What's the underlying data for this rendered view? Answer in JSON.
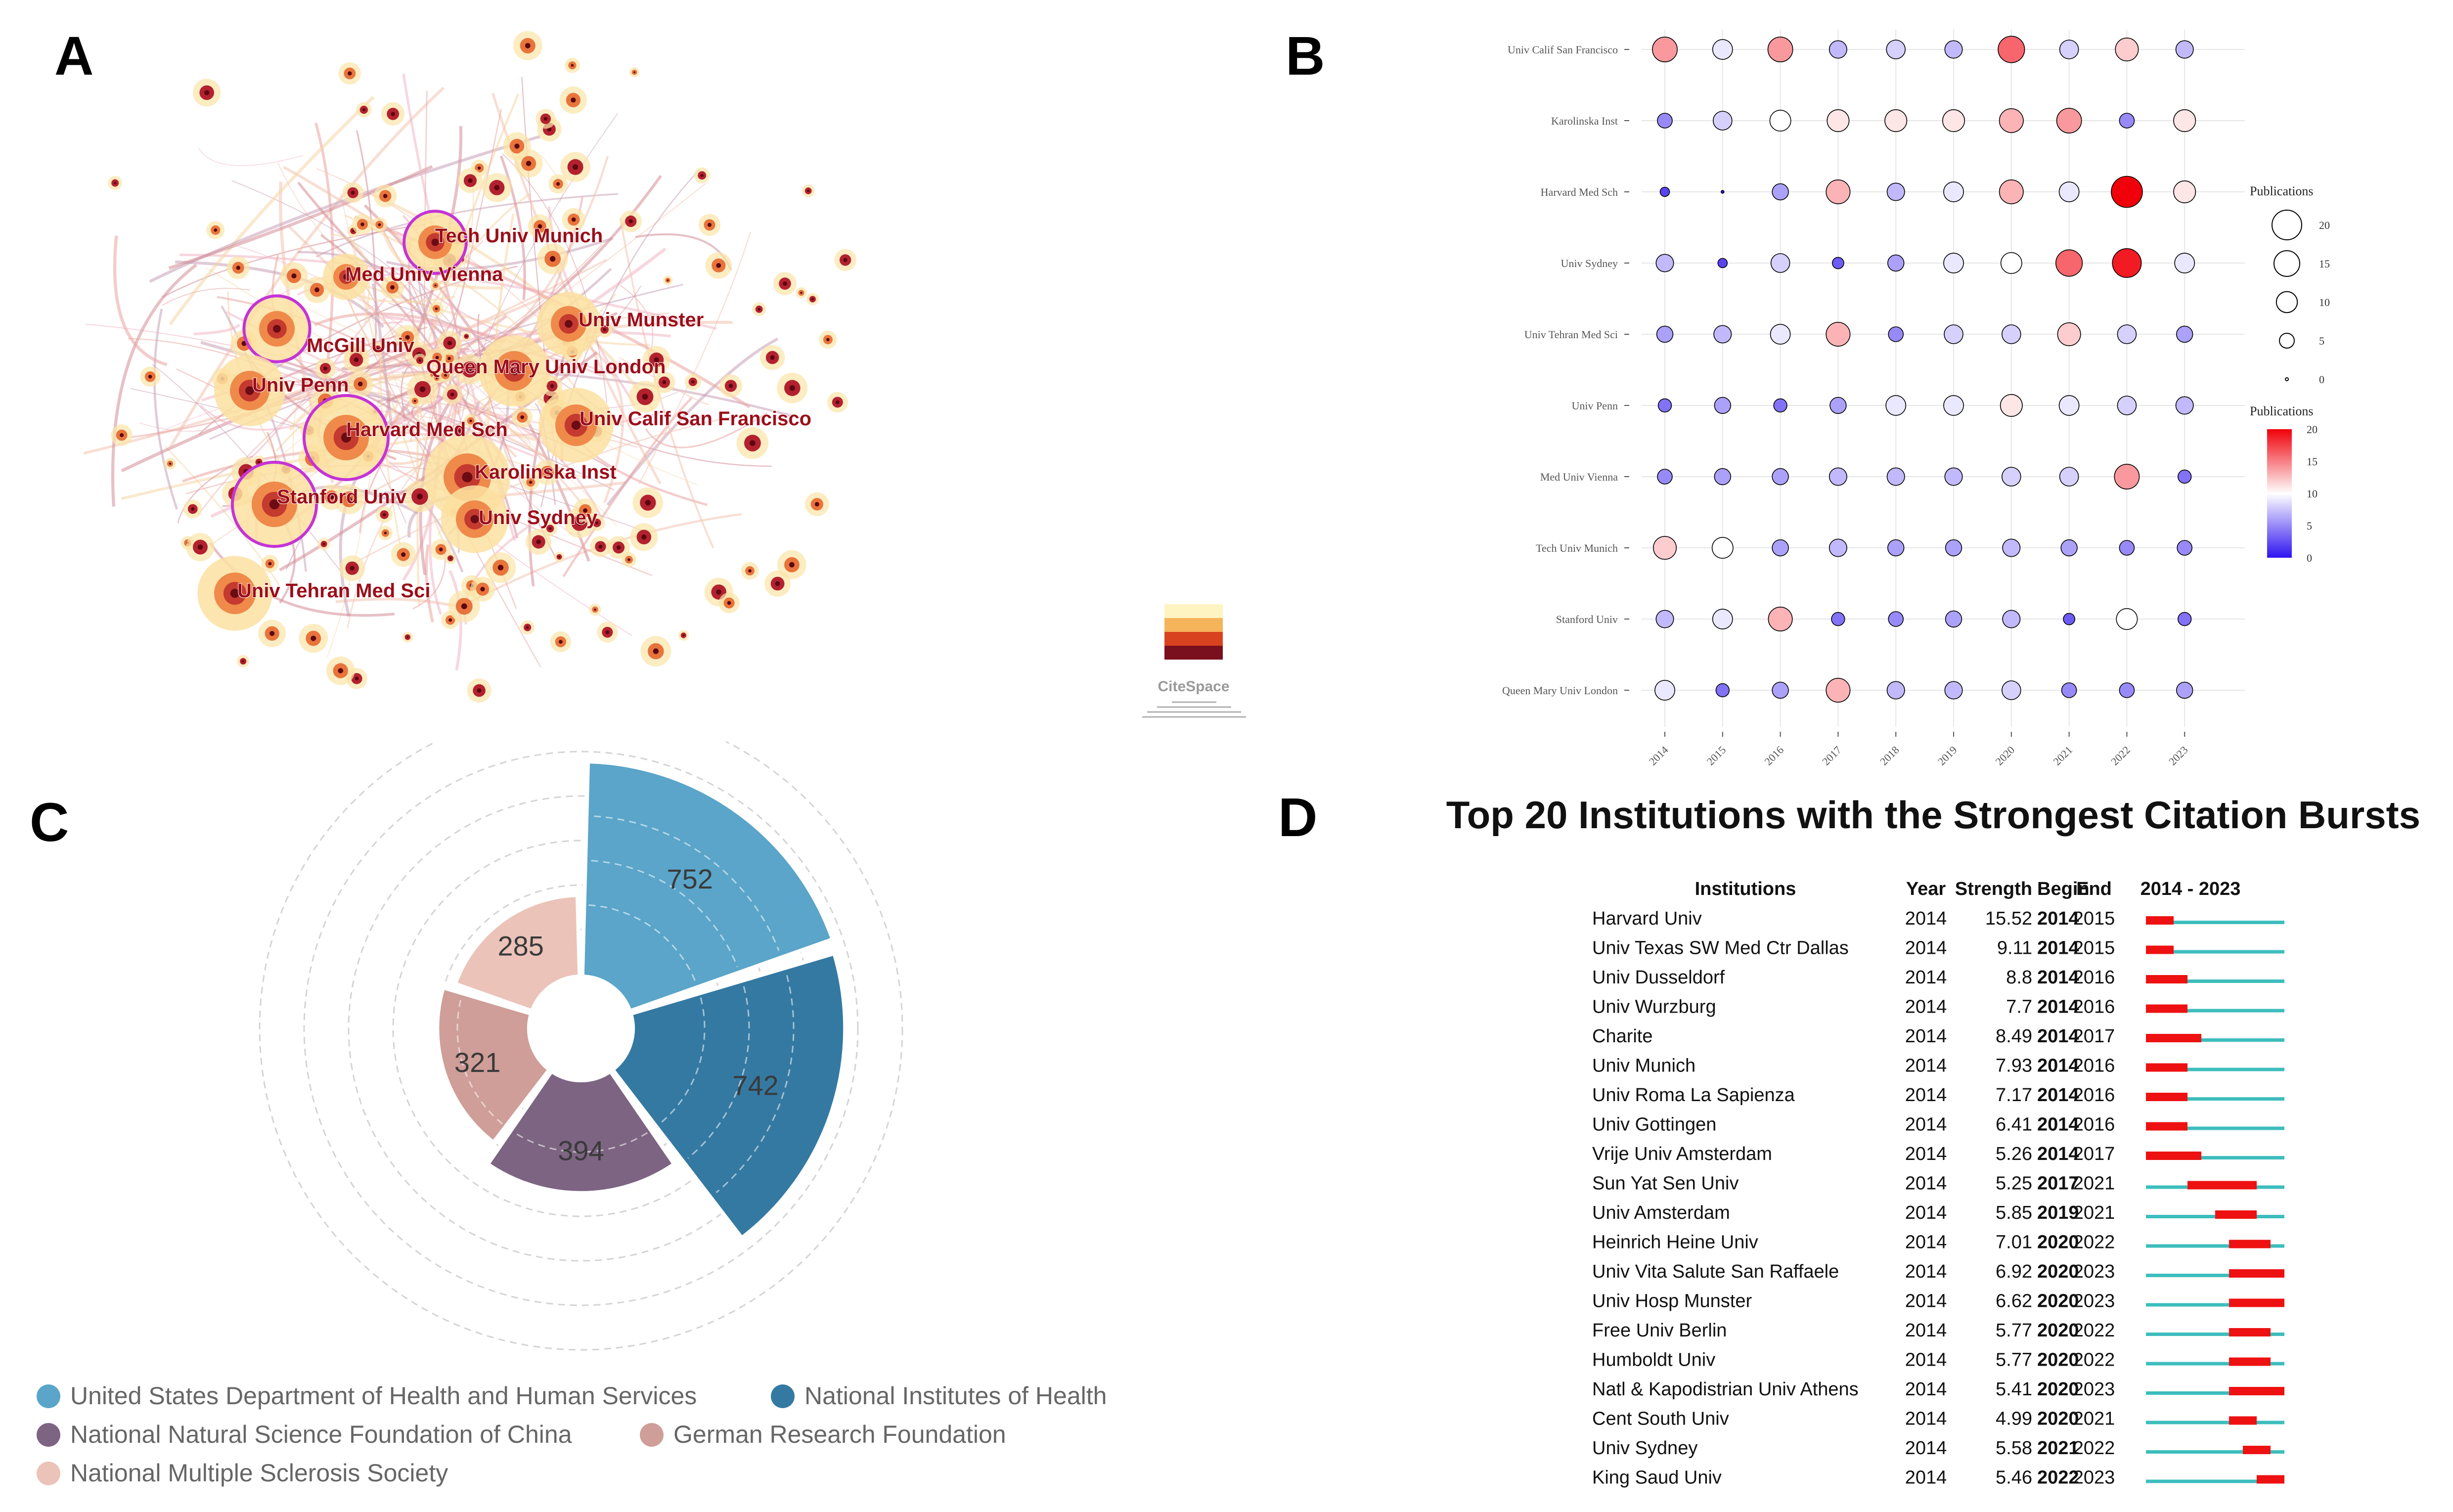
{
  "panels": {
    "a": "A",
    "b": "B",
    "c": "C",
    "d": "D"
  },
  "network": {
    "title": "",
    "logo_text": "CiteSpace",
    "nodes": [
      {
        "label": "Tech Univ Munich"
      },
      {
        "label": "Med Univ Vienna"
      },
      {
        "label": "Univ Munster"
      },
      {
        "label": "McGill Univ"
      },
      {
        "label": "Queen Mary Univ London"
      },
      {
        "label": "Univ Penn"
      },
      {
        "label": "Harvard Med Sch"
      },
      {
        "label": "Univ Calif San Francisco"
      },
      {
        "label": "Karolinska Inst"
      },
      {
        "label": "Stanford Univ"
      },
      {
        "label": "Univ Sydney"
      },
      {
        "label": "Univ Tehran Med Sci"
      }
    ]
  },
  "chart_data": [
    {
      "panel": "B",
      "type": "scatter",
      "years": [
        "2014",
        "2015",
        "2016",
        "2017",
        "2018",
        "2019",
        "2020",
        "2021",
        "2022",
        "2023"
      ],
      "institutions": [
        "Univ Calif San Francisco",
        "Karolinska Inst",
        "Harvard Med Sch",
        "Univ Sydney",
        "Univ Tehran Med Sci",
        "Univ Penn",
        "Med Univ Vienna",
        "Tech Univ Munich",
        "Stanford Univ",
        "Queen Mary Univ London"
      ],
      "values": [
        [
          14,
          9,
          14,
          7,
          8,
          7,
          16,
          8,
          12,
          7
        ],
        [
          5,
          8,
          10,
          11,
          11,
          11,
          13,
          14,
          5,
          11
        ],
        [
          2,
          0,
          6,
          13,
          7,
          9,
          13,
          9,
          22,
          11
        ],
        [
          7,
          2,
          8,
          3,
          6,
          9,
          10,
          16,
          19,
          9
        ],
        [
          6,
          7,
          9,
          13,
          5,
          8,
          8,
          12,
          8,
          6
        ],
        [
          4,
          6,
          4,
          6,
          9,
          9,
          11,
          9,
          8,
          7
        ],
        [
          5,
          6,
          6,
          7,
          7,
          7,
          8,
          8,
          14,
          4
        ],
        [
          12,
          10,
          6,
          7,
          6,
          6,
          7,
          6,
          5,
          5
        ],
        [
          7,
          9,
          13,
          4,
          5,
          6,
          7,
          3,
          10,
          4
        ],
        [
          9,
          4,
          6,
          13,
          7,
          7,
          8,
          5,
          5,
          6
        ]
      ],
      "size_legend": {
        "title": "Publications",
        "values": [
          20,
          15,
          10,
          5,
          0
        ]
      },
      "color_legend": {
        "title": "Publications",
        "ticks": [
          20,
          15,
          10,
          5,
          0
        ],
        "range": [
          0,
          20
        ],
        "low": "#2f14f0",
        "mid": "#ffffff",
        "high": "#f0000a"
      }
    },
    {
      "panel": "C",
      "type": "pie",
      "variant": "nightingale-rose",
      "labels": [
        "United States Department of Health and Human Services",
        "National Institutes of Health",
        "National Natural Science Foundation of China",
        "German Research Foundation",
        "National Multiple Sclerosis Society"
      ],
      "values": [
        752,
        742,
        394,
        321,
        285
      ],
      "value_labels": [
        "752",
        "742",
        "394",
        "321",
        "285"
      ],
      "colors": [
        "#5aa5c9",
        "#3479a2",
        "#7c6482",
        "#cf9e98",
        "#ebc3b9"
      ]
    },
    {
      "panel": "D",
      "type": "table",
      "title": "Top 20 Institutions with the Strongest Citation Bursts",
      "columns": [
        "Institutions",
        "Year",
        "Strength",
        "Begin",
        "End",
        "2014 - 2023"
      ],
      "range": [
        2014,
        2023
      ],
      "rows": [
        {
          "name": "Harvard Univ",
          "year": "2014",
          "strength": "15.52",
          "begin": "2014",
          "end": "2015"
        },
        {
          "name": "Univ Texas SW Med Ctr Dallas",
          "year": "2014",
          "strength": "9.11",
          "begin": "2014",
          "end": "2015"
        },
        {
          "name": "Univ Dusseldorf",
          "year": "2014",
          "strength": "8.8",
          "begin": "2014",
          "end": "2016"
        },
        {
          "name": "Univ Wurzburg",
          "year": "2014",
          "strength": "7.7",
          "begin": "2014",
          "end": "2016"
        },
        {
          "name": "Charite",
          "year": "2014",
          "strength": "8.49",
          "begin": "2014",
          "end": "2017"
        },
        {
          "name": "Univ Munich",
          "year": "2014",
          "strength": "7.93",
          "begin": "2014",
          "end": "2016"
        },
        {
          "name": "Univ Roma La Sapienza",
          "year": "2014",
          "strength": "7.17",
          "begin": "2014",
          "end": "2016"
        },
        {
          "name": "Univ Gottingen",
          "year": "2014",
          "strength": "6.41",
          "begin": "2014",
          "end": "2016"
        },
        {
          "name": "Vrije Univ Amsterdam",
          "year": "2014",
          "strength": "5.26",
          "begin": "2014",
          "end": "2017"
        },
        {
          "name": "Sun Yat Sen Univ",
          "year": "2014",
          "strength": "5.25",
          "begin": "2017",
          "end": "2021"
        },
        {
          "name": "Univ Amsterdam",
          "year": "2014",
          "strength": "5.85",
          "begin": "2019",
          "end": "2021"
        },
        {
          "name": "Heinrich Heine Univ",
          "year": "2014",
          "strength": "7.01",
          "begin": "2020",
          "end": "2022"
        },
        {
          "name": "Univ Vita Salute San Raffaele",
          "year": "2014",
          "strength": "6.92",
          "begin": "2020",
          "end": "2023"
        },
        {
          "name": "Univ Hosp Munster",
          "year": "2014",
          "strength": "6.62",
          "begin": "2020",
          "end": "2023"
        },
        {
          "name": "Free Univ Berlin",
          "year": "2014",
          "strength": "5.77",
          "begin": "2020",
          "end": "2022"
        },
        {
          "name": "Humboldt Univ",
          "year": "2014",
          "strength": "5.77",
          "begin": "2020",
          "end": "2022"
        },
        {
          "name": "Natl & Kapodistrian Univ Athens",
          "year": "2014",
          "strength": "5.41",
          "begin": "2020",
          "end": "2023"
        },
        {
          "name": "Cent South Univ",
          "year": "2014",
          "strength": "4.99",
          "begin": "2020",
          "end": "2021"
        },
        {
          "name": "Univ Sydney",
          "year": "2014",
          "strength": "5.58",
          "begin": "2021",
          "end": "2022"
        },
        {
          "name": "King Saud Univ",
          "year": "2014",
          "strength": "5.46",
          "begin": "2022",
          "end": "2023"
        }
      ],
      "colors": {
        "burst": "#ee1111",
        "baseline": "#3dbdbd"
      }
    }
  ]
}
